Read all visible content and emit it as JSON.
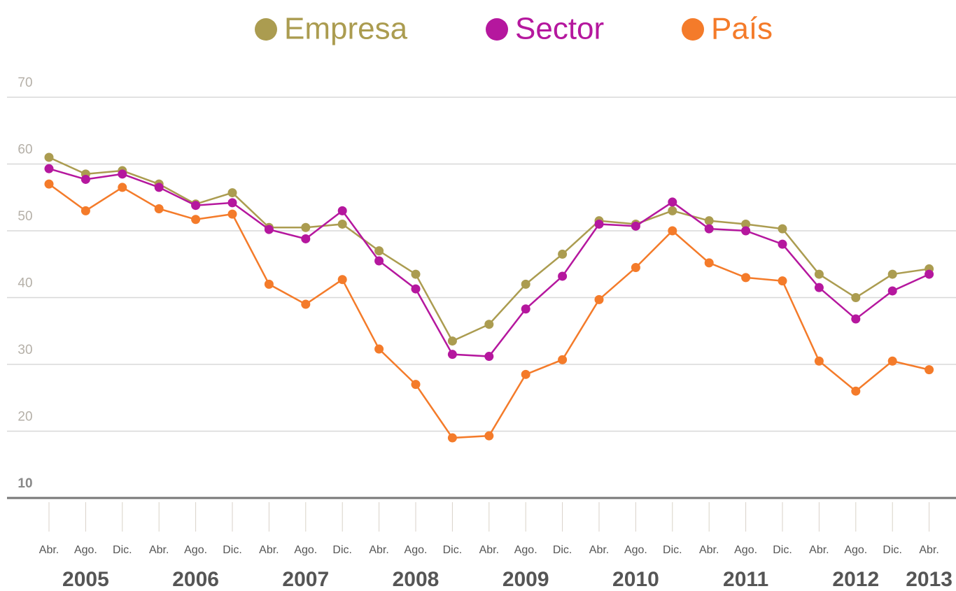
{
  "chart_data": {
    "type": "line",
    "categories": [
      "Abr.",
      "Ago.",
      "Dic.",
      "Abr.",
      "Ago.",
      "Dic.",
      "Abr.",
      "Ago.",
      "Dic.",
      "Abr.",
      "Ago.",
      "Dic.",
      "Abr.",
      "Ago.",
      "Dic.",
      "Abr.",
      "Ago.",
      "Dic.",
      "Abr.",
      "Ago.",
      "Dic.",
      "Abr.",
      "Ago.",
      "Dic.",
      "Abr."
    ],
    "years": [
      "2005",
      "2006",
      "2007",
      "2008",
      "2009",
      "2010",
      "2011",
      "2012",
      "2013"
    ],
    "series": [
      {
        "name": "Empresa",
        "color": "#ab9c50",
        "values": [
          61,
          58.5,
          59,
          57,
          54,
          55.7,
          50.5,
          50.5,
          51,
          47,
          43.5,
          33.5,
          36,
          42,
          46.5,
          51.5,
          51,
          53,
          51.5,
          51,
          50.3,
          43.5,
          40,
          43.5,
          44.3
        ]
      },
      {
        "name": "Sector",
        "color": "#b5179e",
        "values": [
          59.3,
          57.7,
          58.5,
          56.5,
          53.8,
          54.2,
          50.2,
          48.8,
          53,
          45.5,
          41.3,
          31.5,
          31.2,
          38.3,
          43.2,
          51,
          50.7,
          54.3,
          50.3,
          50,
          48,
          41.5,
          36.8,
          41,
          43.5
        ]
      },
      {
        "name": "País",
        "color": "#f47b2a",
        "values": [
          57,
          53,
          56.5,
          53.3,
          51.7,
          52.5,
          42,
          39,
          42.7,
          32.3,
          27,
          19,
          19.3,
          28.5,
          30.7,
          39.7,
          44.5,
          50,
          45.2,
          43,
          42.5,
          30.5,
          26,
          30.5,
          29.2
        ]
      }
    ],
    "ylim": [
      10,
      70
    ],
    "yticks": [
      10,
      20,
      30,
      40,
      50,
      60,
      70
    ],
    "grid": true
  }
}
